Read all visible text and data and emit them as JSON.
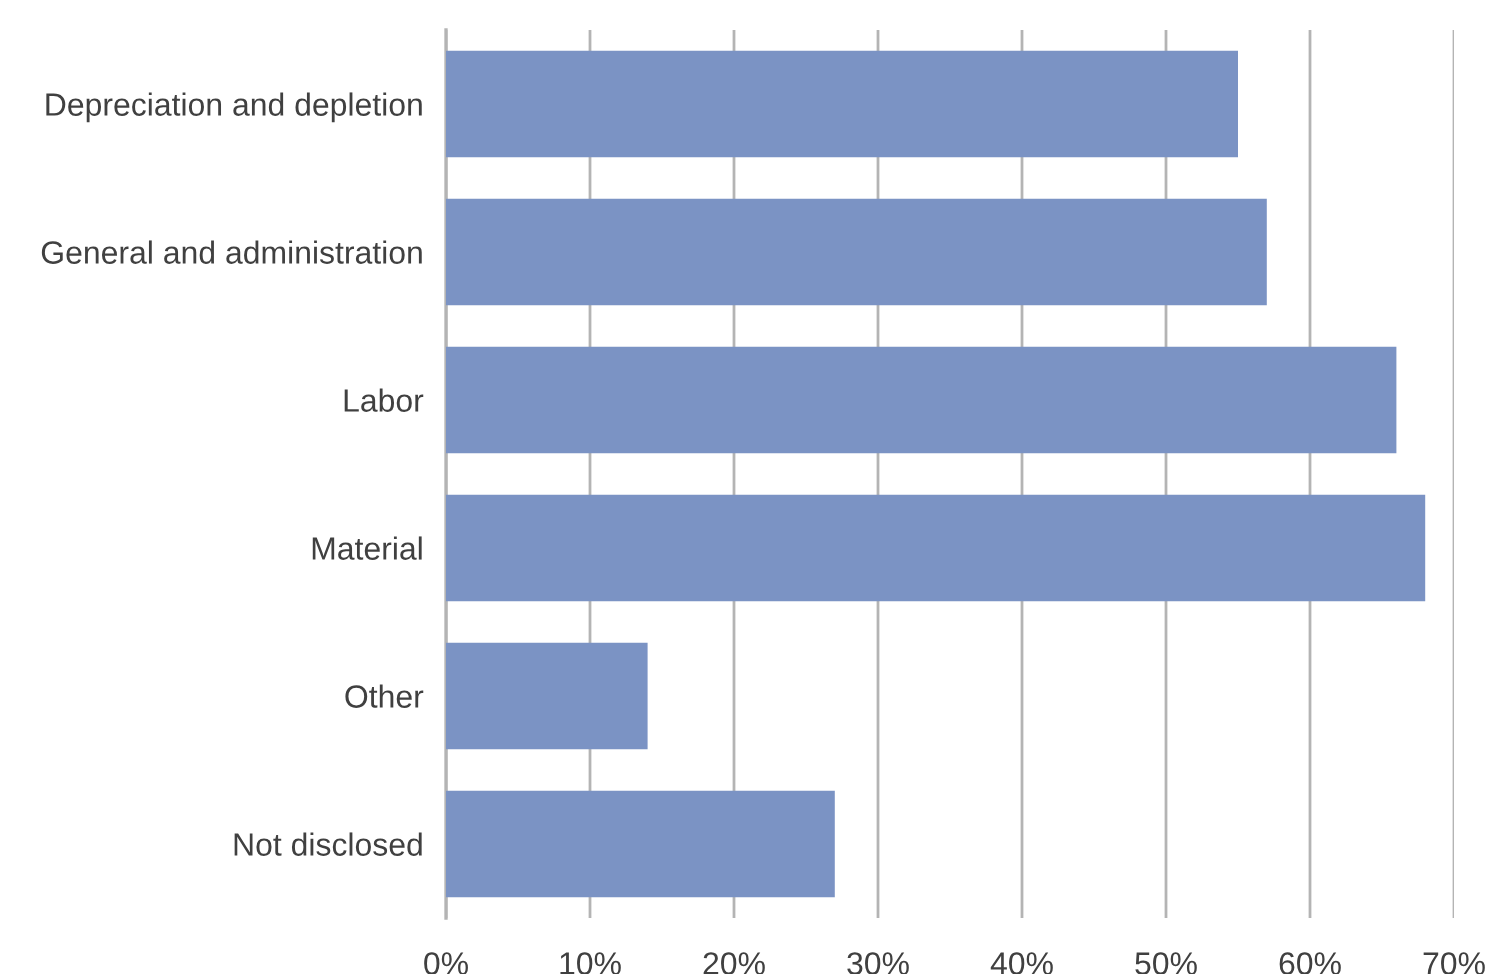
{
  "chart_data": {
    "type": "bar",
    "orientation": "horizontal",
    "categories": [
      "Depreciation and depletion",
      "General and administration",
      "Labor",
      "Material",
      "Other",
      "Not disclosed"
    ],
    "values": [
      55,
      57,
      66,
      68,
      14,
      27
    ],
    "color": "#7b93c4",
    "xlim": [
      0,
      70
    ],
    "xticks": [
      {
        "value": 0,
        "label": "0%"
      },
      {
        "value": 10,
        "label": "10%"
      },
      {
        "value": 20,
        "label": "20%"
      },
      {
        "value": 30,
        "label": "30%"
      },
      {
        "value": 40,
        "label": "40%"
      },
      {
        "value": 50,
        "label": "50%"
      },
      {
        "value": 60,
        "label": "60%"
      },
      {
        "value": 70,
        "label": "70%"
      }
    ],
    "grid": "x",
    "legend": false
  }
}
